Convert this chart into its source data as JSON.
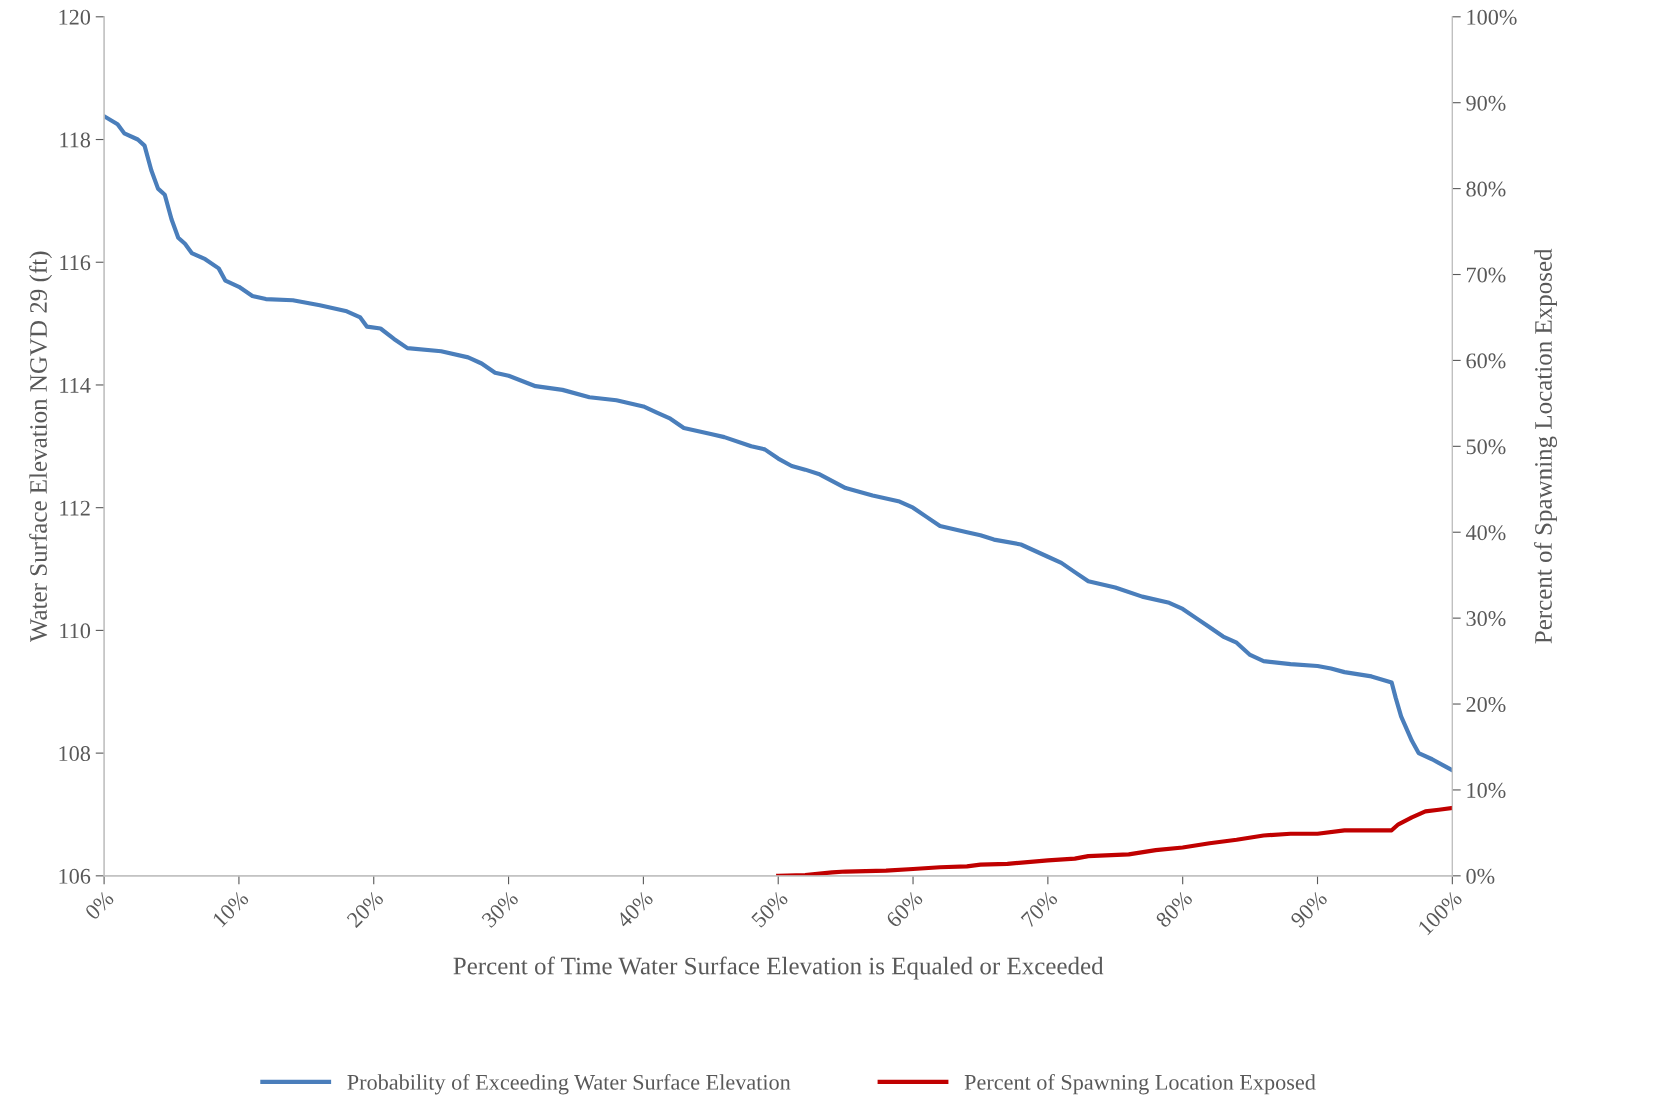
{
  "chart_data": {
    "type": "line",
    "xlabel": "Percent of Time Water Surface Elevation is Equaled or Exceeded",
    "ylabel": "Water Surface Elevation NGVD 29 (ft)",
    "y2label": "Percent of Spawning Location Exposed",
    "xlim": [
      0,
      100
    ],
    "xticks": [
      {
        "value": 0,
        "label": "0%"
      },
      {
        "value": 10,
        "label": "10%"
      },
      {
        "value": 20,
        "label": "20%"
      },
      {
        "value": 30,
        "label": "30%"
      },
      {
        "value": 40,
        "label": "40%"
      },
      {
        "value": 50,
        "label": "50%"
      },
      {
        "value": 60,
        "label": "60%"
      },
      {
        "value": 70,
        "label": "70%"
      },
      {
        "value": 80,
        "label": "80%"
      },
      {
        "value": 90,
        "label": "90%"
      },
      {
        "value": 100,
        "label": "100%"
      }
    ],
    "ylim": [
      106,
      120
    ],
    "yticks": [
      106,
      108,
      110,
      112,
      114,
      116,
      118,
      120
    ],
    "y2lim": [
      0,
      100
    ],
    "y2ticks": [
      {
        "value": 0,
        "label": "0%"
      },
      {
        "value": 10,
        "label": "10%"
      },
      {
        "value": 20,
        "label": "20%"
      },
      {
        "value": 30,
        "label": "30%"
      },
      {
        "value": 40,
        "label": "40%"
      },
      {
        "value": 50,
        "label": "50%"
      },
      {
        "value": 60,
        "label": "60%"
      },
      {
        "value": 70,
        "label": "70%"
      },
      {
        "value": 80,
        "label": "80%"
      },
      {
        "value": 90,
        "label": "90%"
      },
      {
        "value": 100,
        "label": "100%"
      }
    ],
    "grid": false,
    "legend": "bottom",
    "marker": "none",
    "line_style": "solid",
    "series": [
      {
        "name": "Probability of Exceeding Water Surface Elevation",
        "color": "#4a7ebb",
        "x": [
          0,
          1,
          1.5,
          2.5,
          3,
          3.5,
          4,
          4.5,
          5,
          5.5,
          6,
          6.5,
          7.5,
          8.5,
          9,
          10,
          11,
          12,
          14,
          16,
          18,
          19,
          19.5,
          20.5,
          21.5,
          22.5,
          25,
          27,
          28,
          29,
          30,
          32,
          34,
          36,
          38,
          40,
          41,
          42,
          43,
          45,
          46,
          48,
          49,
          50,
          51,
          52,
          53,
          55,
          57,
          59,
          60,
          61,
          62,
          64,
          65,
          66,
          68,
          70,
          71,
          72,
          73,
          75,
          77,
          79,
          80,
          81,
          82,
          83,
          84,
          85,
          86,
          88,
          90,
          91,
          92,
          94,
          95.5,
          95.8,
          96.2,
          97,
          97.5,
          98.5,
          99.5,
          100
        ],
        "values": [
          118.38,
          118.25,
          118.1,
          118.0,
          117.9,
          117.5,
          117.2,
          117.1,
          116.7,
          116.4,
          116.3,
          116.15,
          116.05,
          115.9,
          115.7,
          115.6,
          115.45,
          115.4,
          115.38,
          115.3,
          115.2,
          115.1,
          114.95,
          114.92,
          114.75,
          114.6,
          114.55,
          114.45,
          114.35,
          114.2,
          114.15,
          113.98,
          113.92,
          113.8,
          113.75,
          113.65,
          113.55,
          113.45,
          113.3,
          113.2,
          113.15,
          113.0,
          112.95,
          112.8,
          112.68,
          112.62,
          112.55,
          112.32,
          112.2,
          112.1,
          112.0,
          111.85,
          111.7,
          111.6,
          111.55,
          111.48,
          111.4,
          111.2,
          111.1,
          110.95,
          110.8,
          110.7,
          110.55,
          110.45,
          110.35,
          110.2,
          110.05,
          109.9,
          109.8,
          109.6,
          109.5,
          109.45,
          109.42,
          109.38,
          109.32,
          109.25,
          109.15,
          108.9,
          108.6,
          108.2,
          108.0,
          107.9,
          107.78,
          107.72
        ]
      },
      {
        "name": "Percent of Spawning Location Exposed",
        "color": "#c00000",
        "axis": "y2",
        "x": [
          50,
          52,
          54,
          55,
          58,
          60,
          62,
          64,
          65,
          67,
          70,
          72,
          73,
          76,
          78,
          80,
          82,
          84,
          86,
          88,
          90,
          92,
          95.5,
          96,
          97,
          98,
          99,
          100
        ],
        "values": [
          0,
          0.1,
          0.4,
          0.5,
          0.6,
          0.8,
          1.0,
          1.1,
          1.3,
          1.4,
          1.8,
          2.0,
          2.3,
          2.5,
          3.0,
          3.3,
          3.8,
          4.2,
          4.7,
          4.9,
          4.9,
          5.3,
          5.3,
          6.0,
          6.8,
          7.5,
          7.7,
          7.9
        ]
      }
    ]
  }
}
